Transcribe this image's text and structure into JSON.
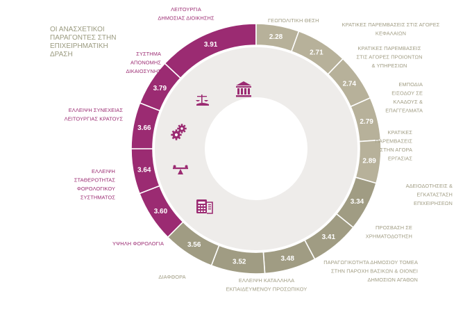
{
  "chart_data": {
    "type": "donut",
    "title": "ΟΙ ΑΝΑΣΧΕΤΙΚΟΙ ΠΑΡΑΓΟΝΤΕΣ ΣΤΗΝ ΕΠΙΧΕΙΡΗΜΑΤΙΚΗ ΔΡΑΣΗ",
    "title_lines": [
      "ΟΙ ΑΝΑΣΧΕΤΙΚΟΙ",
      "ΠΑΡΑΓΟΝΤΕΣ ΣΤΗΝ",
      "ΕΠΙΧΕΙΡΗΜΑΤΙΚΗ",
      "ΔΡΑΣΗ"
    ],
    "colors": {
      "purple": "#9b2b72",
      "tan": "#b7b19a",
      "olive": "#a09c83",
      "inner_ring": "#eeecea",
      "separator": "#ffffff"
    },
    "segments": [
      {
        "value": 3.91,
        "value_label": "3.91",
        "group": "purple",
        "label_lines": [
          "ΛΕΙΤΟΥΡΓΙΑ",
          "ΔΗΜΟΣΙΑΣ ΔΙΟΙΚΗΣΗΣ"
        ]
      },
      {
        "value": 2.28,
        "value_label": "2.28",
        "group": "tan",
        "label_lines": [
          "ΓΕΩΠΟΛΙΤΙΚΗ ΘΕΣΗ"
        ]
      },
      {
        "value": 2.71,
        "value_label": "2.71",
        "group": "tan",
        "label_lines": [
          "ΚΡΑΤΙΚΕΣ ΠΑΡΕΜΒΑΣΕΙΣ ΣΤΙΣ ΑΓΟΡΕΣ",
          "ΚΕΦΑΛΑΙΩΝ"
        ]
      },
      {
        "value": 2.74,
        "value_label": "2.74",
        "group": "tan",
        "label_lines": [
          "ΚΡΑΤΙΚΕΣ ΠΑΡΕΜΒΑΣΕΙΣ",
          "ΣΤΙΣ ΑΓΟΡΕΣ ΠΡΟΙΟΝΤΩΝ",
          "& ΥΠΗΡΕΣΙΩΝ"
        ]
      },
      {
        "value": 2.79,
        "value_label": "2.79",
        "group": "tan",
        "label_lines": [
          "ΕΜΠΟΔΙΑ",
          "ΕΙΣΟΔΟΥ ΣΕ",
          "ΚΛΑΔΟΥΣ &",
          "ΕΠΑΓΓΕΛΜΑΤΑ"
        ]
      },
      {
        "value": 2.89,
        "value_label": "2.89",
        "group": "tan",
        "label_lines": [
          "ΚΡΑΤΙΚΕΣ",
          "ΠΑΡΕΜΒΑΣΕΙΣ",
          "ΣΤΗΝ ΑΓΟΡΑ",
          "ΕΡΓΑΣΙΑΣ"
        ]
      },
      {
        "value": 3.34,
        "value_label": "3.34",
        "group": "olive",
        "label_lines": [
          "ΑΔΕΙΟΔΟΤΗΣΕΙΣ &",
          "ΕΓΚΑΤΑΣΤΑΣΗ",
          "ΕΠΙΧΕΙΡΗΣΕΩΝ"
        ]
      },
      {
        "value": 3.41,
        "value_label": "3.41",
        "group": "olive",
        "label_lines": [
          "ΠΡΟΣΒΑΣΗ ΣΕ",
          "ΧΡΗΜΑΤΟΔΟΤΗΣΗ"
        ]
      },
      {
        "value": 3.48,
        "value_label": "3.48",
        "group": "olive",
        "label_lines": [
          "ΠΑΡΑΓΩΓΙΚΟΤΗΤΑ ΔΗΜΟΣΙΟΥ ΤΟΜΕΑ",
          "ΣΤΗΝ ΠΑΡΟΧΗ ΒΑΣΙΚΩΝ & ΟΙΟΝΕΙ",
          "ΔΗΜΟΣΙΩΝ ΑΓΑΘΩΝ"
        ]
      },
      {
        "value": 3.52,
        "value_label": "3.52",
        "group": "olive",
        "label_lines": [
          "ΕΛΛΕΙΨΗ ΚΑΤΑΛΛΗΛΑ",
          "ΕΚΠΑΙΔΕΥΜΕΝΟΥ ΠΡΟΣΩΠΙΚΟΥ"
        ]
      },
      {
        "value": 3.56,
        "value_label": "3.56",
        "group": "olive",
        "label_lines": [
          "ΔΙΑΦΘΟΡΑ"
        ]
      },
      {
        "value": 3.6,
        "value_label": "3.60",
        "group": "purple",
        "label_lines": [
          "ΥΨΗΛΗ ΦΟΡΟΛΟΓΙΑ"
        ]
      },
      {
        "value": 3.64,
        "value_label": "3.64",
        "group": "purple",
        "label_lines": [
          "ΕΛΛΕΙΨΗ",
          "ΣΤΑΘΕΡΟΤΗΤΑΣ",
          "ΦΟΡΟΛΟΓΙΚΟΥ",
          "ΣΥΣΤΗΜΑΤΟΣ"
        ]
      },
      {
        "value": 3.66,
        "value_label": "3.66",
        "group": "purple",
        "label_lines": [
          "ΕΛΛΕΙΨΗ ΣΥΝΕΧΕΙΑΣ",
          "ΛΕΙΤΟΥΡΓΙΑΣ ΚΡΑΤΟΥΣ"
        ]
      },
      {
        "value": 3.79,
        "value_label": "3.79",
        "group": "purple",
        "label_lines": [
          "ΣΥΣΤΗΜΑ",
          "ΑΠΟΝΟΜΗΣ",
          "ΔΙΚΑΙΟΣΥΝΗΣ"
        ]
      }
    ],
    "icons": [
      "institution-icon",
      "scales-of-justice-icon",
      "gears-icon",
      "balance-seesaw-icon",
      "tax-document-icon"
    ]
  }
}
